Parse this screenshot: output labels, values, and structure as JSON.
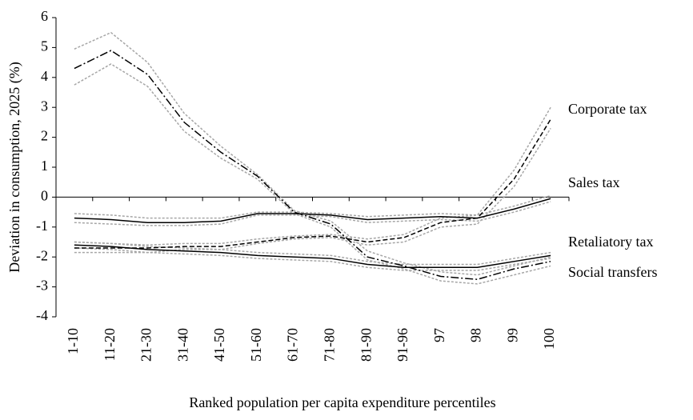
{
  "chart_data": {
    "type": "line",
    "y_label": "Deviation in consumption, 2025 (%)",
    "x_label": "Ranked population per capita expenditure percentiles",
    "categories": [
      "1-10",
      "11-20",
      "21-30",
      "31-40",
      "41-50",
      "51-60",
      "61-70",
      "71-80",
      "81-90",
      "91-96",
      "97",
      "98",
      "99",
      "100"
    ],
    "ylim": [
      -4,
      6
    ],
    "yticks": [
      -4,
      -3,
      -2,
      -1,
      0,
      1,
      2,
      3,
      4,
      5,
      6
    ],
    "band_color": "#a6a6a6",
    "series": [
      {
        "name": "Corporate tax",
        "color": "#000000",
        "style": "dashed",
        "values": [
          -1.7,
          -1.7,
          -1.7,
          -1.65,
          -1.65,
          -1.5,
          -1.35,
          -1.3,
          -1.5,
          -1.35,
          -0.85,
          -0.7,
          0.6,
          2.6
        ],
        "upper": [
          -1.5,
          -1.55,
          -1.6,
          -1.55,
          -1.55,
          -1.4,
          -1.3,
          -1.25,
          -1.4,
          -1.25,
          -0.7,
          -0.6,
          0.9,
          3.0
        ],
        "lower": [
          -1.85,
          -1.85,
          -1.85,
          -1.75,
          -1.75,
          -1.55,
          -1.4,
          -1.35,
          -1.6,
          -1.5,
          -1.0,
          -0.9,
          0.35,
          2.3
        ]
      },
      {
        "name": "Sales tax",
        "color": "#000000",
        "style": "solid",
        "values": [
          -0.7,
          -0.75,
          -0.85,
          -0.85,
          -0.8,
          -0.55,
          -0.55,
          -0.6,
          -0.75,
          -0.7,
          -0.65,
          -0.7,
          -0.4,
          -0.05
        ],
        "upper": [
          -0.55,
          -0.6,
          -0.7,
          -0.7,
          -0.7,
          -0.5,
          -0.5,
          -0.55,
          -0.65,
          -0.6,
          -0.55,
          -0.6,
          -0.3,
          0.05
        ],
        "lower": [
          -0.85,
          -0.9,
          -0.95,
          -0.95,
          -0.9,
          -0.6,
          -0.6,
          -0.65,
          -0.85,
          -0.8,
          -0.75,
          -0.8,
          -0.5,
          -0.15
        ]
      },
      {
        "name": "Retaliatory tax",
        "color": "#000000",
        "style": "dashdot",
        "values": [
          4.3,
          4.9,
          4.1,
          2.5,
          1.5,
          0.7,
          -0.5,
          -0.9,
          -2.0,
          -2.3,
          -2.65,
          -2.75,
          -2.4,
          -2.15
        ],
        "upper": [
          4.95,
          5.5,
          4.5,
          2.8,
          1.7,
          0.75,
          -0.45,
          -0.8,
          -1.8,
          -2.2,
          -2.5,
          -2.6,
          -2.3,
          -2.0
        ],
        "lower": [
          3.75,
          4.45,
          3.7,
          2.2,
          1.3,
          0.6,
          -0.55,
          -1.0,
          -2.1,
          -2.4,
          -2.8,
          -2.9,
          -2.6,
          -2.3
        ]
      },
      {
        "name": "Social transfers",
        "color": "#000000",
        "style": "solid",
        "values": [
          -1.6,
          -1.65,
          -1.75,
          -1.8,
          -1.85,
          -1.95,
          -2.0,
          -2.05,
          -2.25,
          -2.35,
          -2.35,
          -2.35,
          -2.15,
          -1.95
        ],
        "upper": [
          -1.5,
          -1.55,
          -1.65,
          -1.7,
          -1.75,
          -1.85,
          -1.9,
          -1.95,
          -2.15,
          -2.25,
          -2.25,
          -2.25,
          -2.05,
          -1.85
        ],
        "lower": [
          -1.7,
          -1.75,
          -1.85,
          -1.9,
          -1.95,
          -2.05,
          -2.1,
          -2.15,
          -2.35,
          -2.45,
          -2.45,
          -2.45,
          -2.25,
          -2.05
        ]
      }
    ]
  }
}
